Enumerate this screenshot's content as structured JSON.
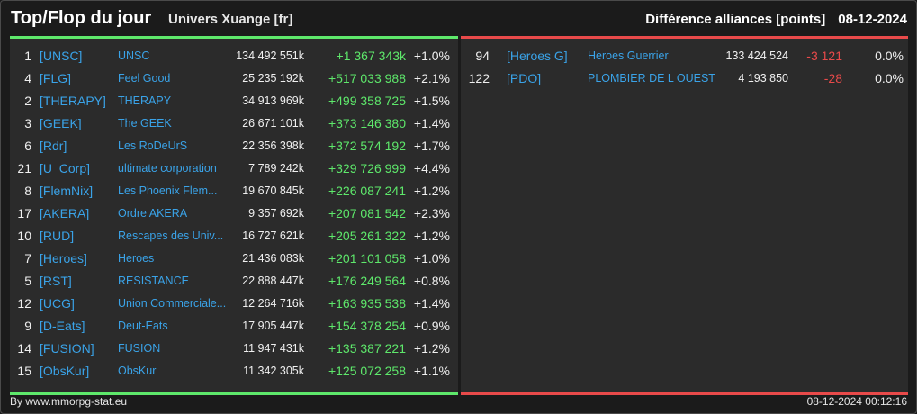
{
  "header": {
    "title": "Top/Flop du jour",
    "subtitle": "Univers Xuange [fr]",
    "right_label": "Différence alliances [points]",
    "date": "08-12-2024"
  },
  "colors": {
    "top_accent": "#5ee86b",
    "flop_accent": "#e84a4a",
    "tag_link": "#3aa3e8"
  },
  "top": [
    {
      "rank": "1",
      "tag": "[UNSC]",
      "name": "UNSC",
      "points": "134 492 551k",
      "diff": "+1 367 343k",
      "pct": "+1.0%"
    },
    {
      "rank": "4",
      "tag": "[FLG]",
      "name": "Feel Good",
      "points": "25 235 192k",
      "diff": "+517 033 988",
      "pct": "+2.1%"
    },
    {
      "rank": "2",
      "tag": "[THERAPY]",
      "name": "THERAPY",
      "points": "34 913 969k",
      "diff": "+499 358 725",
      "pct": "+1.5%"
    },
    {
      "rank": "3",
      "tag": "[GEEK]",
      "name": "The GEEK",
      "points": "26 671 101k",
      "diff": "+373 146 380",
      "pct": "+1.4%"
    },
    {
      "rank": "6",
      "tag": "[Rdr]",
      "name": "Les RoDeUrS",
      "points": "22 356 398k",
      "diff": "+372 574 192",
      "pct": "+1.7%"
    },
    {
      "rank": "21",
      "tag": "[U_Corp]",
      "name": "ultimate corporation",
      "points": "7 789 242k",
      "diff": "+329 726 999",
      "pct": "+4.4%"
    },
    {
      "rank": "8",
      "tag": "[FlemNix]",
      "name": "Les Phoenix Flem...",
      "points": "19 670 845k",
      "diff": "+226 087 241",
      "pct": "+1.2%"
    },
    {
      "rank": "17",
      "tag": "[AKERA]",
      "name": "Ordre AKERA",
      "points": "9 357 692k",
      "diff": "+207 081 542",
      "pct": "+2.3%"
    },
    {
      "rank": "10",
      "tag": "[RUD]",
      "name": "Rescapes des Univ...",
      "points": "16 727 621k",
      "diff": "+205 261 322",
      "pct": "+1.2%"
    },
    {
      "rank": "7",
      "tag": "[Heroes]",
      "name": "Heroes",
      "points": "21 436 083k",
      "diff": "+201 101 058",
      "pct": "+1.0%"
    },
    {
      "rank": "5",
      "tag": "[RST]",
      "name": "RESISTANCE",
      "points": "22 888 447k",
      "diff": "+176 249 564",
      "pct": "+0.8%"
    },
    {
      "rank": "12",
      "tag": "[UCG]",
      "name": "Union Commerciale...",
      "points": "12 264 716k",
      "diff": "+163 935 538",
      "pct": "+1.4%"
    },
    {
      "rank": "9",
      "tag": "[D-Eats]",
      "name": "Deut-Eats",
      "points": "17 905 447k",
      "diff": "+154 378 254",
      "pct": "+0.9%"
    },
    {
      "rank": "14",
      "tag": "[FUSION]",
      "name": "FUSION",
      "points": "11 947 431k",
      "diff": "+135 387 221",
      "pct": "+1.2%"
    },
    {
      "rank": "15",
      "tag": "[ObsKur]",
      "name": "ObsKur",
      "points": "11 342 305k",
      "diff": "+125 072 258",
      "pct": "+1.1%"
    }
  ],
  "flop": [
    {
      "rank": "94",
      "tag": "[Heroes G]",
      "name": "Heroes Guerrier",
      "points": "133 424 524",
      "diff": "-3 121",
      "pct": "0.0%"
    },
    {
      "rank": "122",
      "tag": "[PDO]",
      "name": "PLOMBIER DE L OUEST",
      "points": "4 193 850",
      "diff": "-28",
      "pct": "0.0%"
    }
  ],
  "footer": {
    "credit": "By www.mmorpg-stat.eu",
    "timestamp": "08-12-2024 00:12:16"
  }
}
